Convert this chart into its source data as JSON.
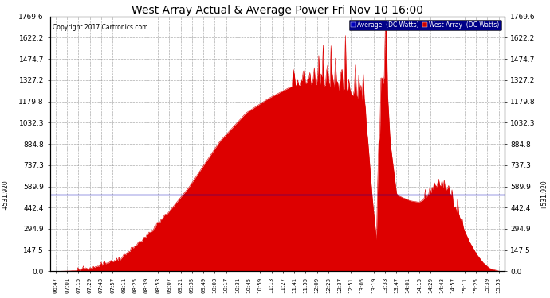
{
  "title": "West Array Actual & Average Power Fri Nov 10 16:00",
  "copyright": "Copyright 2017 Cartronics.com",
  "legend_labels": [
    "Average  (DC Watts)",
    "West Array  (DC Watts)"
  ],
  "legend_colors_bg": [
    "#0000bb",
    "#cc0000"
  ],
  "avg_value": 531.92,
  "ymax": 1769.6,
  "yticks": [
    0.0,
    147.5,
    294.9,
    442.4,
    589.9,
    737.3,
    884.8,
    1032.3,
    1179.8,
    1327.2,
    1474.7,
    1622.2,
    1769.6
  ],
  "bg_color": "#ffffff",
  "grid_color": "#999999",
  "fill_color": "#dd0000",
  "avg_line_color": "#0000bb",
  "xtick_labels": [
    "06:47",
    "07:01",
    "07:15",
    "07:29",
    "07:43",
    "07:57",
    "08:11",
    "08:25",
    "08:39",
    "08:53",
    "09:07",
    "09:21",
    "09:35",
    "09:49",
    "10:03",
    "10:17",
    "10:31",
    "10:45",
    "10:59",
    "11:13",
    "11:27",
    "11:41",
    "11:55",
    "12:09",
    "12:23",
    "12:37",
    "12:51",
    "13:05",
    "13:19",
    "13:33",
    "13:47",
    "14:01",
    "14:15",
    "14:29",
    "14:43",
    "14:57",
    "15:11",
    "15:25",
    "15:39",
    "15:53"
  ]
}
